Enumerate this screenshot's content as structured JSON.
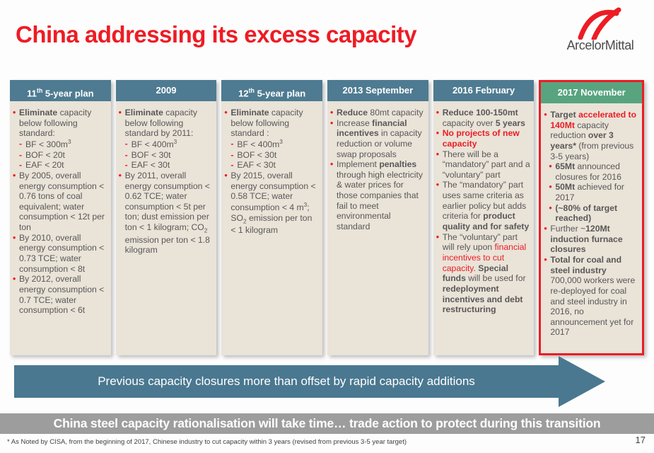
{
  "slide": {
    "title": "China addressing its excess capacity",
    "logo_text": "ArcelorMittal",
    "arrow_banner": "Previous capacity closures more than offset by rapid capacity additions",
    "bottom_banner": "China steel capacity rationalisation will take time… trade action to protect during this transition",
    "footnote": "* As Noted by CISA, from the beginning of 2017, Chinese industry to cut capacity within 3 years (revised from previous 3-5 year target)",
    "page_number": "17"
  },
  "colors": {
    "accent_red": "#ed1c24",
    "header_teal": "#4e7b91",
    "header_green": "#58a47f",
    "column_body": "#e9e3d8",
    "body_text": "#595757",
    "arrow_teal": "#4a7890",
    "banner_gray": "#9d9d9d"
  },
  "columns": [
    {
      "id": "11th-5-year-plan",
      "highlight": false,
      "header": [
        {
          "t": "11"
        },
        {
          "t": "th",
          "sup": true
        },
        {
          "t": " 5-year plan"
        }
      ],
      "items": [
        {
          "marker": "dot",
          "indent": 0,
          "segments": [
            {
              "t": "Eliminate",
              "b": true
            },
            {
              "t": " capacity below following standard:"
            }
          ]
        },
        {
          "marker": "dash",
          "indent": 0,
          "segments": [
            {
              "t": "BF < 300m"
            },
            {
              "t": "3",
              "sup": true
            }
          ]
        },
        {
          "marker": "dash",
          "indent": 0,
          "segments": [
            {
              "t": "BOF < 20t"
            }
          ]
        },
        {
          "marker": "dash",
          "indent": 0,
          "segments": [
            {
              "t": "EAF < 20t"
            }
          ]
        },
        {
          "marker": "dot",
          "indent": 0,
          "segments": [
            {
              "t": " By 2005, overall energy consumption < 0.76 tons of coal equivalent; water consumption < 12t per ton"
            }
          ]
        },
        {
          "marker": "dot",
          "indent": 0,
          "segments": [
            {
              "t": "By 2010, overall energy consumption < 0.73 TCE; water consumption < 8t"
            }
          ]
        },
        {
          "marker": "dot",
          "indent": 0,
          "segments": [
            {
              "t": "By 2012, overall energy consumption < 0.7 TCE; water consumption  < 6t"
            }
          ]
        }
      ]
    },
    {
      "id": "2009",
      "highlight": false,
      "header": [
        {
          "t": "2009"
        }
      ],
      "items": [
        {
          "marker": "dot",
          "indent": 0,
          "segments": [
            {
              "t": "Eliminate",
              "b": true
            },
            {
              "t": " capacity below following standard by 2011:"
            }
          ]
        },
        {
          "marker": "dash",
          "indent": 0,
          "segments": [
            {
              "t": "BF < 400m"
            },
            {
              "t": "3",
              "sup": true
            }
          ]
        },
        {
          "marker": "dash",
          "indent": 0,
          "segments": [
            {
              "t": "BOF < 30t"
            }
          ]
        },
        {
          "marker": "dash",
          "indent": 0,
          "segments": [
            {
              "t": "EAF < 30t"
            }
          ]
        },
        {
          "marker": "dot",
          "indent": 0,
          "segments": [
            {
              "t": " By 2011, overall energy consumption < 0.62 TCE; water consumption < 5t per ton; dust emission per ton < 1 kilogram; CO"
            },
            {
              "t": "2",
              "sub": true
            },
            {
              "t": " emission per ton < 1.8 kilogram"
            }
          ]
        }
      ]
    },
    {
      "id": "12th-5-year-plan",
      "highlight": false,
      "header": [
        {
          "t": "12"
        },
        {
          "t": "th",
          "sup": true
        },
        {
          "t": " 5-year plan"
        }
      ],
      "items": [
        {
          "marker": "dot",
          "indent": 0,
          "segments": [
            {
              "t": "Eliminate",
              "b": true
            },
            {
              "t": " capacity below following standard :"
            }
          ]
        },
        {
          "marker": "dash",
          "indent": 0,
          "segments": [
            {
              "t": "BF < 400m"
            },
            {
              "t": "3",
              "sup": true
            }
          ]
        },
        {
          "marker": "dash",
          "indent": 0,
          "segments": [
            {
              "t": "BOF < 30t"
            }
          ]
        },
        {
          "marker": "dash",
          "indent": 0,
          "segments": [
            {
              "t": "EAF < 30t"
            }
          ]
        },
        {
          "marker": "dot",
          "indent": 0,
          "segments": [
            {
              "t": "By 2015, overall energy consumption < 0.58 TCE; water consumption < 4 m"
            },
            {
              "t": "3",
              "sup": true
            },
            {
              "t": "; SO"
            },
            {
              "t": "2",
              "sub": true
            },
            {
              "t": " emission per ton < 1 kilogram"
            }
          ]
        }
      ]
    },
    {
      "id": "2013-september",
      "highlight": false,
      "header": [
        {
          "t": "2013 September"
        }
      ],
      "items": [
        {
          "marker": "dot",
          "indent": 0,
          "segments": [
            {
              "t": "Reduce",
              "b": true
            },
            {
              "t": " 80mt capacity"
            }
          ]
        },
        {
          "marker": "dot",
          "indent": 0,
          "segments": [
            {
              "t": "Increase "
            },
            {
              "t": "financial incentives",
              "b": true
            },
            {
              "t": " in capacity reduction or volume swap proposals"
            }
          ]
        },
        {
          "marker": "dot",
          "indent": 0,
          "segments": [
            {
              "t": "Implement "
            },
            {
              "t": "penalties",
              "b": true
            },
            {
              "t": " through high electricity & water prices for those companies that fail to meet environmental standard"
            }
          ]
        }
      ]
    },
    {
      "id": "2016-february",
      "highlight": false,
      "header": [
        {
          "t": "2016 February"
        }
      ],
      "items": [
        {
          "marker": "dot",
          "indent": 0,
          "segments": [
            {
              "t": "Reduce 100-150mt",
              "b": true
            },
            {
              "t": " capacity over "
            },
            {
              "t": "5 years",
              "b": true
            }
          ]
        },
        {
          "marker": "dot",
          "indent": 0,
          "segments": [
            {
              "t": "No projects of new capacity",
              "b": true,
              "r": true
            }
          ]
        },
        {
          "marker": "dot",
          "indent": 0,
          "segments": [
            {
              "t": "There will be a “mandatory” part and a “voluntary” part"
            }
          ]
        },
        {
          "marker": "dot",
          "indent": 0,
          "segments": [
            {
              "t": "The “mandatory” part uses same criteria as earlier policy but adds criteria for "
            },
            {
              "t": "product quality and for safety",
              "b": true
            }
          ]
        },
        {
          "marker": "dot",
          "indent": 0,
          "segments": [
            {
              "t": "The “voluntary” part will rely upon "
            },
            {
              "t": "financial incentives to cut capacity",
              "r": true
            },
            {
              "t": ". "
            },
            {
              "t": "Special funds",
              "b": true
            },
            {
              "t": " will be used for "
            },
            {
              "t": "redeployment incentives and debt restructuring",
              "b": true
            }
          ]
        }
      ]
    },
    {
      "id": "2017-november",
      "highlight": true,
      "header": [
        {
          "t": "2017 November"
        }
      ],
      "items": [
        {
          "marker": "dot",
          "indent": 0,
          "segments": [
            {
              "t": "Target ",
              "b": true
            },
            {
              "t": "accelerated to 140Mt",
              "b": true,
              "r": true
            },
            {
              "t": " capacity reduction "
            },
            {
              "t": "over 3 years*",
              "b": true
            },
            {
              "t": " (from previous 3-5 years)"
            }
          ]
        },
        {
          "marker": "dot",
          "indent": 1,
          "segments": [
            {
              "t": "65Mt",
              "b": true
            },
            {
              "t": " announced closures for 2016"
            }
          ]
        },
        {
          "marker": "dot",
          "indent": 1,
          "segments": [
            {
              "t": "50Mt",
              "b": true
            },
            {
              "t": " achieved for 2017"
            }
          ]
        },
        {
          "marker": "dot",
          "indent": 1,
          "segments": [
            {
              "t": "(~80% of target reached)",
              "b": true
            }
          ]
        },
        {
          "marker": "dot",
          "indent": 0,
          "segments": [
            {
              "t": "Further ~"
            },
            {
              "t": "120Mt induction furnace closures",
              "b": true
            }
          ]
        },
        {
          "marker": "dot",
          "indent": 0,
          "segments": [
            {
              "t": "Total for coal and steel industry",
              "b": true
            },
            {
              "t": " 700,000 workers were re-deployed for coal and steel industry in 2016, no announcement yet for 2017"
            }
          ]
        }
      ]
    }
  ]
}
